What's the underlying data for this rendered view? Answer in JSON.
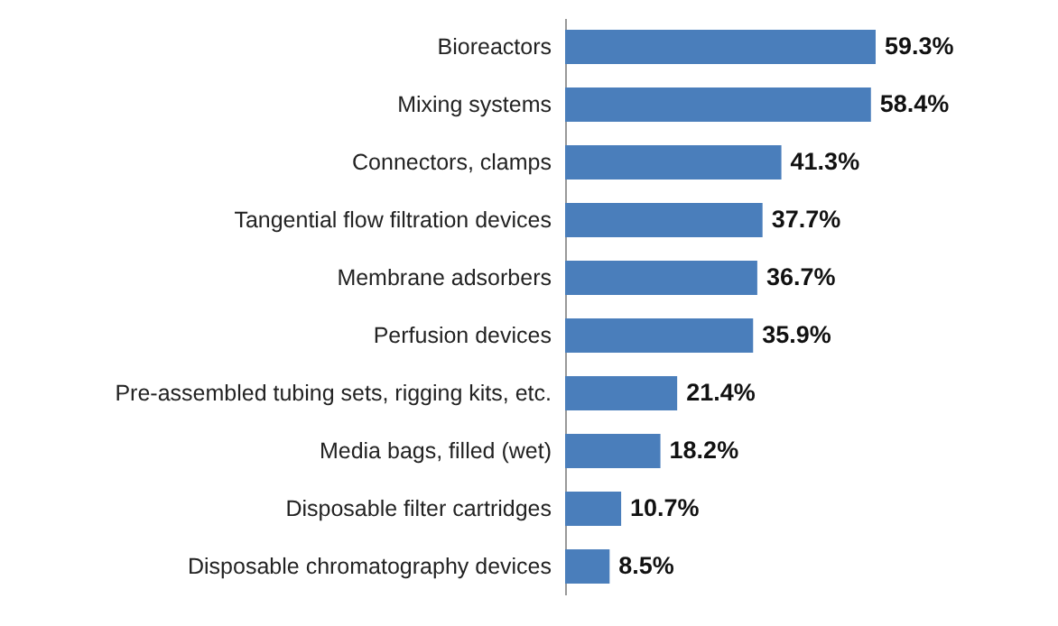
{
  "chart_data": {
    "type": "bar",
    "orientation": "horizontal",
    "categories": [
      "Bioreactors",
      "Mixing systems",
      "Connectors, clamps",
      "Tangential flow filtration devices",
      "Membrane adsorbers",
      "Perfusion devices",
      "Pre-assembled tubing sets, rigging kits, etc.",
      "Media bags, filled (wet)",
      "Disposable filter cartridges",
      "Disposable chromatography devices"
    ],
    "values": [
      59.3,
      58.4,
      41.3,
      37.7,
      36.7,
      35.9,
      21.4,
      18.2,
      10.7,
      8.5
    ],
    "value_labels": [
      "59.3%",
      "58.4%",
      "41.3%",
      "37.7%",
      "36.7%",
      "35.9%",
      "21.4%",
      "18.2%",
      "10.7%",
      "8.5%"
    ],
    "color": "#4a7ebb"
  }
}
